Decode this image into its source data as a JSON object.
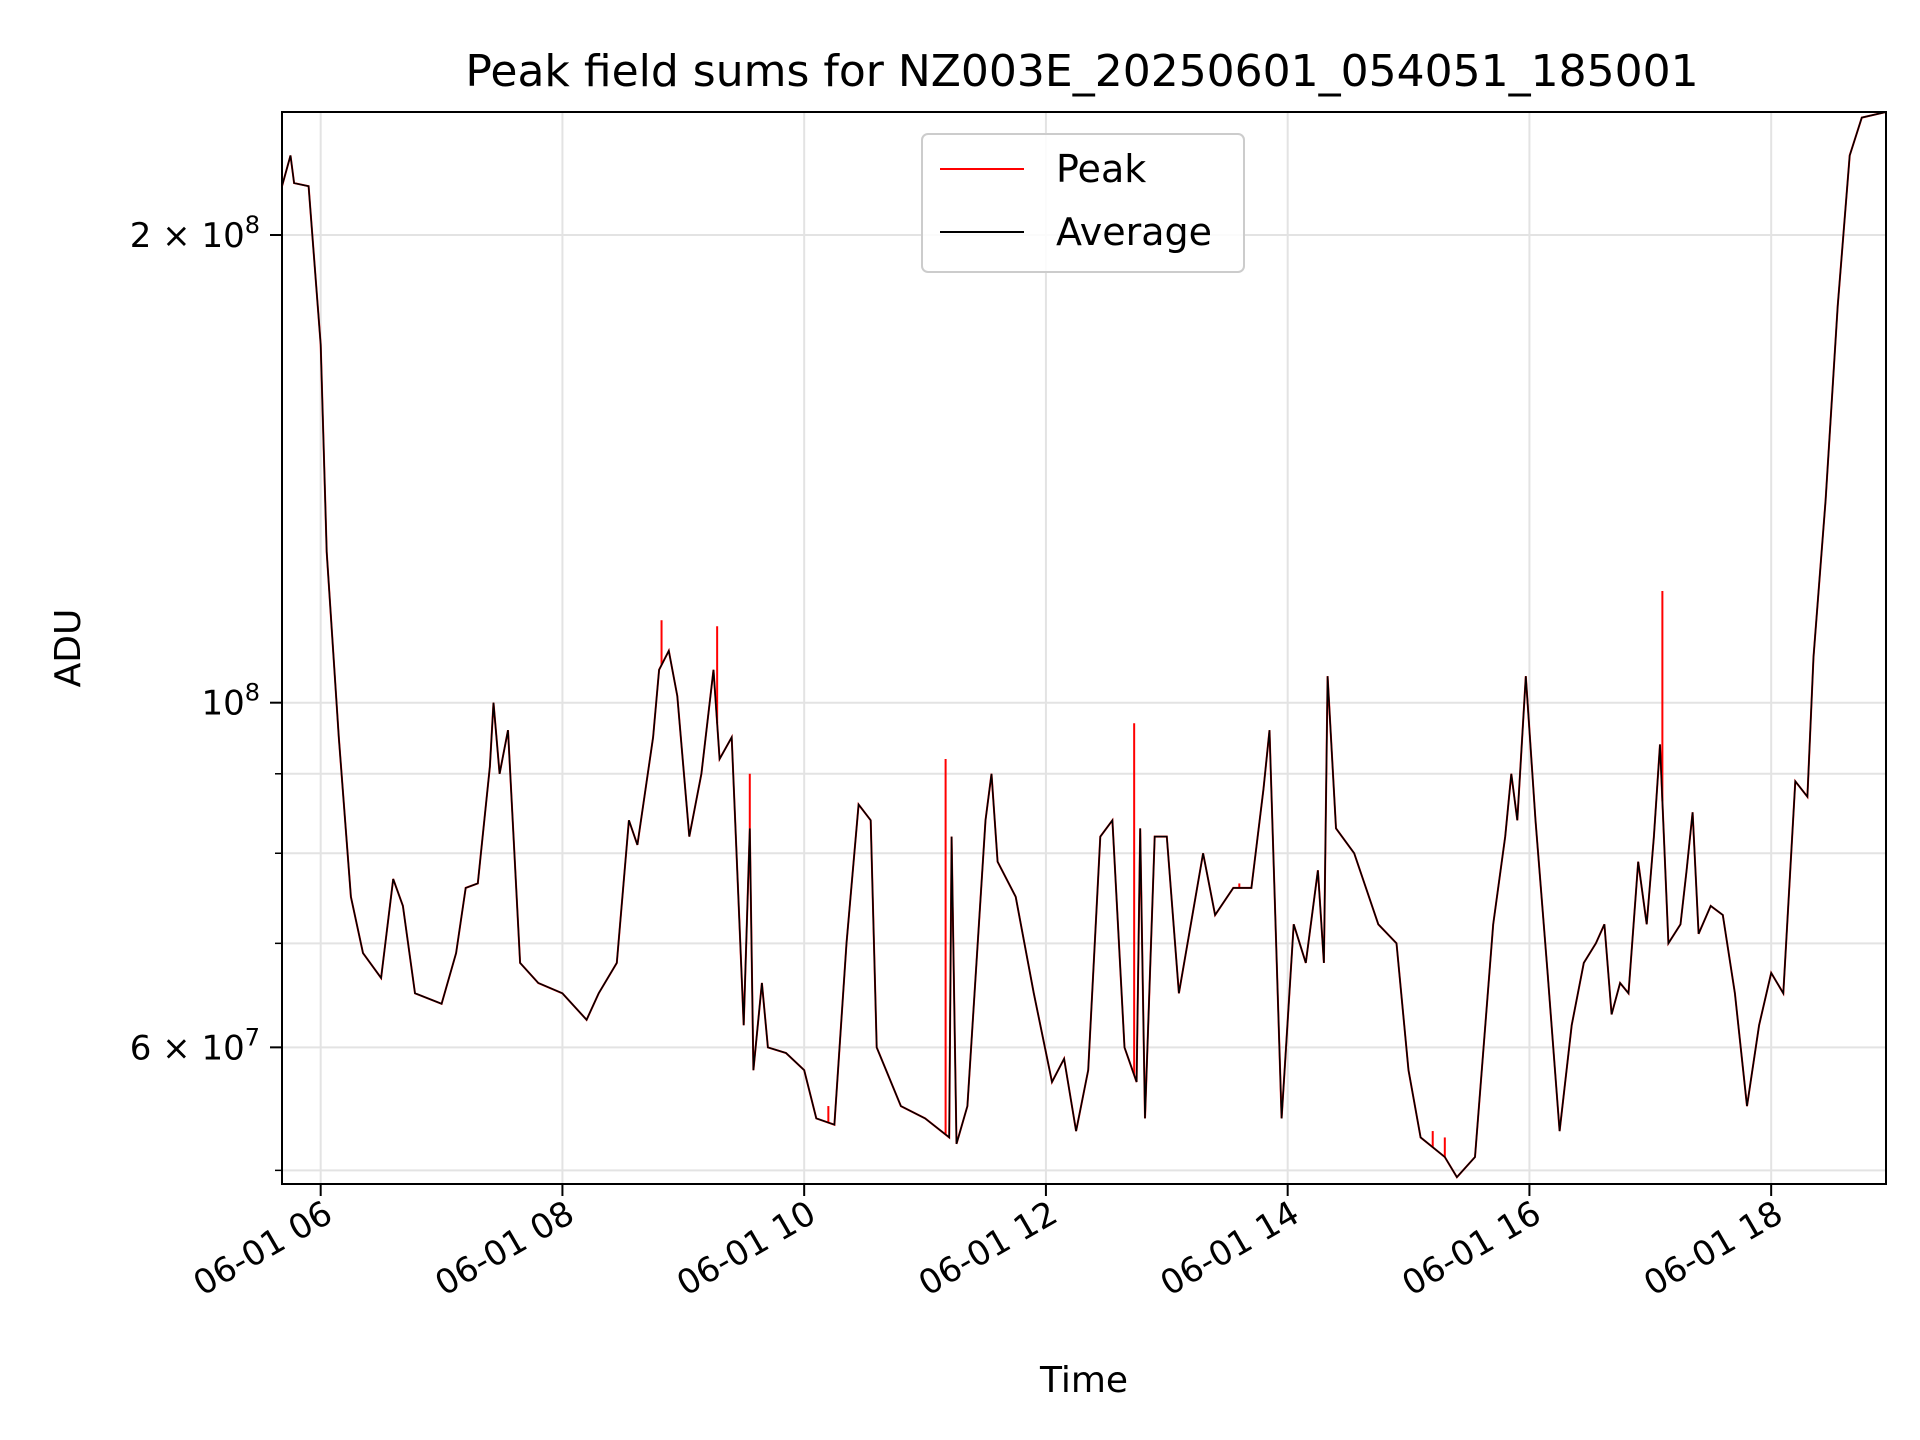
{
  "chart_data": {
    "type": "line",
    "title": "Peak field sums for NZ003E_20250601_054051_185001",
    "xlabel": "Time",
    "ylabel": "ADU",
    "yscale": "log",
    "grid": true,
    "legend_position": "top-center",
    "x_unit": "hour of day (2025-06-01)",
    "xlim": [
      5.68,
      18.95
    ],
    "ylim": [
      49000000,
      240000000
    ],
    "xticks": [
      {
        "value": 6,
        "label": "06-01 06"
      },
      {
        "value": 8,
        "label": "06-01 08"
      },
      {
        "value": 10,
        "label": "06-01 10"
      },
      {
        "value": 12,
        "label": "06-01 12"
      },
      {
        "value": 14,
        "label": "06-01 14"
      },
      {
        "value": 16,
        "label": "06-01 16"
      },
      {
        "value": 18,
        "label": "06-01 18"
      }
    ],
    "yticks": [
      {
        "value": 60000000,
        "base": "6 × 10",
        "exp": "7"
      },
      {
        "value": 100000000,
        "base": "10",
        "exp": "8"
      },
      {
        "value": 200000000,
        "base": "2 × 10",
        "exp": "8"
      }
    ],
    "yminor": [
      50000000,
      70000000,
      80000000,
      90000000
    ],
    "series": [
      {
        "name": "Average",
        "color": "#000000",
        "points": [
          [
            5.68,
            215000000
          ],
          [
            5.75,
            225000000
          ],
          [
            5.78,
            216000000
          ],
          [
            5.9,
            215000000
          ],
          [
            6.0,
            170000000
          ],
          [
            6.05,
            125000000
          ],
          [
            6.15,
            95000000
          ],
          [
            6.25,
            75000000
          ],
          [
            6.35,
            69000000
          ],
          [
            6.5,
            66500000
          ],
          [
            6.6,
            77000000
          ],
          [
            6.68,
            74000000
          ],
          [
            6.78,
            65000000
          ],
          [
            7.0,
            64000000
          ],
          [
            7.12,
            69000000
          ],
          [
            7.2,
            76000000
          ],
          [
            7.3,
            76500000
          ],
          [
            7.4,
            91000000
          ],
          [
            7.43,
            100000000
          ],
          [
            7.48,
            90000000
          ],
          [
            7.55,
            96000000
          ],
          [
            7.65,
            68000000
          ],
          [
            7.8,
            66000000
          ],
          [
            8.0,
            65000000
          ],
          [
            8.2,
            62500000
          ],
          [
            8.3,
            65000000
          ],
          [
            8.45,
            68000000
          ],
          [
            8.55,
            84000000
          ],
          [
            8.62,
            81000000
          ],
          [
            8.75,
            95000000
          ],
          [
            8.8,
            105000000
          ],
          [
            8.88,
            108000000
          ],
          [
            8.95,
            101000000
          ],
          [
            9.05,
            82000000
          ],
          [
            9.15,
            90000000
          ],
          [
            9.25,
            105000000
          ],
          [
            9.3,
            92000000
          ],
          [
            9.4,
            95000000
          ],
          [
            9.5,
            62000000
          ],
          [
            9.55,
            83000000
          ],
          [
            9.58,
            58000000
          ],
          [
            9.65,
            66000000
          ],
          [
            9.7,
            60000000
          ],
          [
            9.85,
            59500000
          ],
          [
            10.0,
            58000000
          ],
          [
            10.1,
            54000000
          ],
          [
            10.25,
            53500000
          ],
          [
            10.35,
            70000000
          ],
          [
            10.45,
            86000000
          ],
          [
            10.55,
            84000000
          ],
          [
            10.6,
            60000000
          ],
          [
            10.8,
            55000000
          ],
          [
            11.0,
            54000000
          ],
          [
            11.2,
            52500000
          ],
          [
            11.22,
            82000000
          ],
          [
            11.26,
            52000000
          ],
          [
            11.35,
            55000000
          ],
          [
            11.5,
            84000000
          ],
          [
            11.55,
            90000000
          ],
          [
            11.6,
            79000000
          ],
          [
            11.75,
            75000000
          ],
          [
            11.9,
            65000000
          ],
          [
            12.05,
            57000000
          ],
          [
            12.15,
            59000000
          ],
          [
            12.25,
            53000000
          ],
          [
            12.35,
            58000000
          ],
          [
            12.45,
            82000000
          ],
          [
            12.55,
            84000000
          ],
          [
            12.65,
            60000000
          ],
          [
            12.75,
            57000000
          ],
          [
            12.78,
            83000000
          ],
          [
            12.82,
            54000000
          ],
          [
            12.9,
            82000000
          ],
          [
            13.0,
            82000000
          ],
          [
            13.1,
            65000000
          ],
          [
            13.3,
            80000000
          ],
          [
            13.4,
            73000000
          ],
          [
            13.55,
            76000000
          ],
          [
            13.7,
            76000000
          ],
          [
            13.8,
            88000000
          ],
          [
            13.85,
            96000000
          ],
          [
            13.95,
            54000000
          ],
          [
            14.05,
            72000000
          ],
          [
            14.15,
            68000000
          ],
          [
            14.25,
            78000000
          ],
          [
            14.3,
            68000000
          ],
          [
            14.33,
            104000000
          ],
          [
            14.4,
            83000000
          ],
          [
            14.55,
            80000000
          ],
          [
            14.75,
            72000000
          ],
          [
            14.9,
            70000000
          ],
          [
            15.0,
            58000000
          ],
          [
            15.1,
            52500000
          ],
          [
            15.3,
            51000000
          ],
          [
            15.4,
            49500000
          ],
          [
            15.55,
            51000000
          ],
          [
            15.7,
            72000000
          ],
          [
            15.8,
            82000000
          ],
          [
            15.85,
            90000000
          ],
          [
            15.9,
            84000000
          ],
          [
            15.97,
            104000000
          ],
          [
            16.05,
            84000000
          ],
          [
            16.15,
            67000000
          ],
          [
            16.25,
            53000000
          ],
          [
            16.35,
            62000000
          ],
          [
            16.45,
            68000000
          ],
          [
            16.55,
            70000000
          ],
          [
            16.62,
            72000000
          ],
          [
            16.68,
            63000000
          ],
          [
            16.75,
            66000000
          ],
          [
            16.82,
            65000000
          ],
          [
            16.9,
            79000000
          ],
          [
            16.97,
            72000000
          ],
          [
            17.03,
            82000000
          ],
          [
            17.08,
            94000000
          ],
          [
            17.15,
            70000000
          ],
          [
            17.25,
            72000000
          ],
          [
            17.3,
            78000000
          ],
          [
            17.35,
            85000000
          ],
          [
            17.4,
            71000000
          ],
          [
            17.5,
            74000000
          ],
          [
            17.6,
            73000000
          ],
          [
            17.7,
            65000000
          ],
          [
            17.8,
            55000000
          ],
          [
            17.9,
            62000000
          ],
          [
            18.0,
            67000000
          ],
          [
            18.1,
            65000000
          ],
          [
            18.2,
            89000000
          ],
          [
            18.3,
            87000000
          ],
          [
            18.35,
            107000000
          ],
          [
            18.45,
            135000000
          ],
          [
            18.55,
            180000000
          ],
          [
            18.65,
            225000000
          ],
          [
            18.75,
            238000000
          ],
          [
            18.95,
            240000000
          ]
        ]
      },
      {
        "name": "Peak",
        "color": "#ff0000",
        "spikes": [
          [
            8.82,
            113000000
          ],
          [
            9.28,
            112000000
          ],
          [
            9.55,
            90000000
          ],
          [
            11.17,
            92000000
          ],
          [
            12.73,
            97000000
          ],
          [
            17.1,
            118000000
          ],
          [
            15.2,
            53000000
          ],
          [
            15.3,
            52500000
          ],
          [
            10.2,
            55000000
          ],
          [
            13.6,
            76500000
          ]
        ]
      }
    ]
  }
}
